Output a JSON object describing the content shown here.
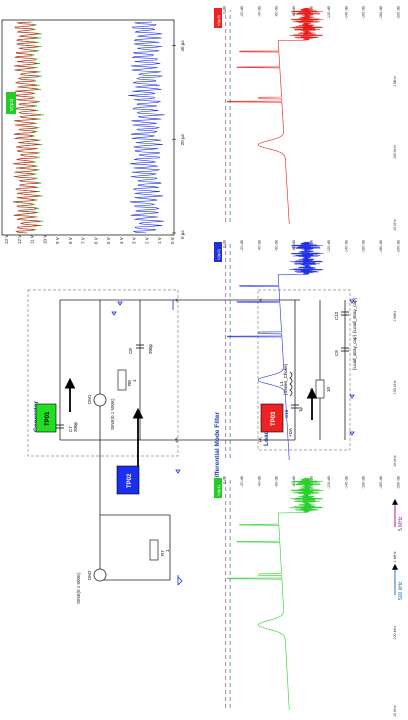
{
  "schematic": {
    "title": "With Differential Mode Filter",
    "generator_label": "Generator",
    "load_label": "Load",
    "sources": [
      {
        "name": "DM1",
        "param": "SINE(0 1 500K)"
      },
      {
        "name": "DM2",
        "param": "SINE(0 1 500K)"
      }
    ],
    "tp_labels": [
      "TP01",
      "TP02",
      "TP03"
    ],
    "nodes": [
      "+A",
      "-A",
      "+A",
      "-A",
      "+DA"
    ],
    "components": {
      "c7": "C7",
      "c7_val": "200p",
      "c8": "C8",
      "c8_val": "200p",
      "r7": "R7",
      "r7_val": "1",
      "r8": "R8",
      "r8_val": "1",
      "l1": "L1",
      "l1_val": "{Series_Choke}",
      "c10": "C10",
      "c10_val": "1p",
      "r9": "R9",
      "r9_val": "10",
      "c9": "C9",
      "c9_val": "{Load_stray_cap}",
      "c12": "C12",
      "c12_val": "{Load_stray_cap}"
    }
  },
  "time_plot": {
    "yticks": [
      "13 V",
      "12 V",
      "11 V",
      "10 V",
      "9 V",
      "8 V",
      "7 V",
      "6 V",
      "5 V",
      "4 V",
      "3 V",
      "2 V",
      "1 V",
      "0 V"
    ],
    "xticks": [
      "0 µs",
      "20 µs",
      "40 µs"
    ],
    "label": "V(tp3)",
    "colors": {
      "red": "#e11b1b",
      "green": "#22c02a",
      "blue": "#1a2fe0"
    }
  },
  "spectra": [
    {
      "label": "V(tp1)",
      "color": "#28d028",
      "label_bg": "#22cc22"
    },
    {
      "label": "V(tp2)",
      "color": "#2030e8",
      "label_bg": "#2030e0"
    },
    {
      "label": "V(tp3)",
      "color": "#ee1a1a",
      "label_bg": "#ee2222"
    }
  ],
  "spectrum_yticks": [
    "0 dB",
    "-20 dB",
    "-40 dB",
    "-60 dB",
    "-80 dB",
    "-100 dB",
    "-120 dB",
    "-140 dB",
    "-160 dB",
    "-180 dB",
    "-200 dB"
  ],
  "spectrum_xticks": [
    "10 kHz",
    "100 kHz",
    "1 MHz"
  ],
  "markers": {
    "m500": "500 kHz",
    "m5m": "5 MHz"
  }
}
